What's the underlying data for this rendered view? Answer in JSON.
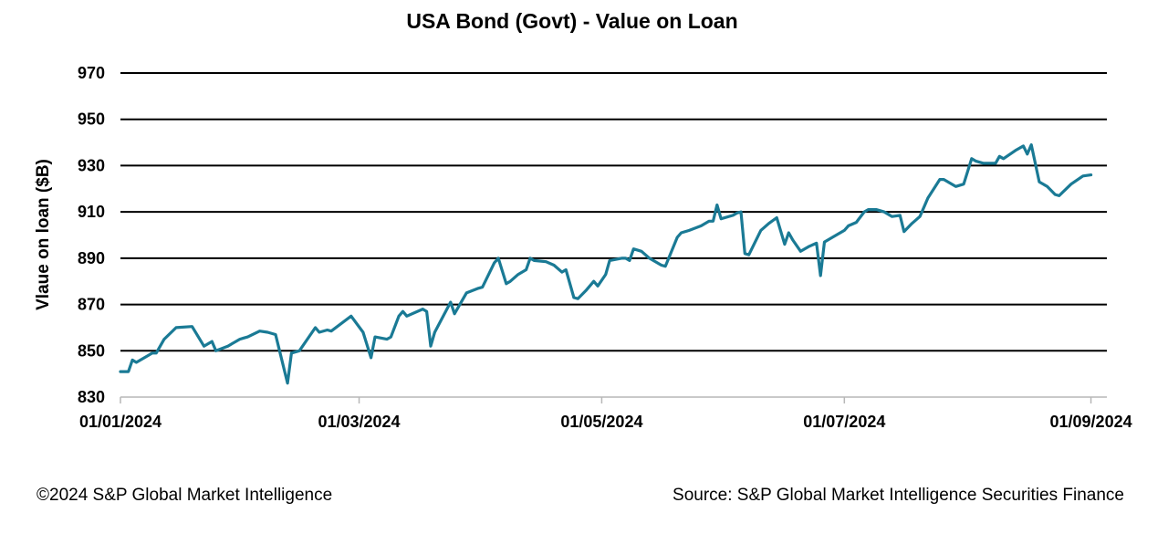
{
  "chart_data": {
    "type": "line",
    "title": "USA Bond (Govt) - Value on Loan",
    "ylabel": "Vlaue on loan ($B)",
    "xlabel": "",
    "ylim": [
      830,
      970
    ],
    "yticks": [
      830,
      850,
      870,
      890,
      910,
      930,
      950,
      970
    ],
    "xlim": [
      "2024-01-01",
      "2024-09-05"
    ],
    "xticks": [
      {
        "date": "2024-01-01",
        "label": "01/01/2024"
      },
      {
        "date": "2024-03-01",
        "label": "01/03/2024"
      },
      {
        "date": "2024-05-01",
        "label": "01/05/2024"
      },
      {
        "date": "2024-07-01",
        "label": "01/07/2024"
      },
      {
        "date": "2024-09-01",
        "label": "01/09/2024"
      }
    ],
    "grid": "horizontal",
    "legend": "none",
    "line_color": "#1a7a95",
    "series": [
      {
        "name": "",
        "points": [
          [
            "2024-01-01",
            841
          ],
          [
            "2024-01-03",
            841
          ],
          [
            "2024-01-04",
            846
          ],
          [
            "2024-01-05",
            845
          ],
          [
            "2024-01-08",
            848
          ],
          [
            "2024-01-09",
            849
          ],
          [
            "2024-01-10",
            849
          ],
          [
            "2024-01-12",
            855
          ],
          [
            "2024-01-15",
            860
          ],
          [
            "2024-01-19",
            860.5
          ],
          [
            "2024-01-22",
            852
          ],
          [
            "2024-01-24",
            854
          ],
          [
            "2024-01-25",
            850
          ],
          [
            "2024-01-28",
            852
          ],
          [
            "2024-01-31",
            855
          ],
          [
            "2024-02-01",
            855.5
          ],
          [
            "2024-02-02",
            856
          ],
          [
            "2024-02-05",
            858.5
          ],
          [
            "2024-02-07",
            858
          ],
          [
            "2024-02-09",
            857
          ],
          [
            "2024-02-12",
            836
          ],
          [
            "2024-02-13",
            849
          ],
          [
            "2024-02-15",
            850
          ],
          [
            "2024-02-19",
            860
          ],
          [
            "2024-02-20",
            858
          ],
          [
            "2024-02-22",
            859
          ],
          [
            "2024-02-23",
            858.5
          ],
          [
            "2024-02-28",
            865
          ],
          [
            "2024-03-02",
            858
          ],
          [
            "2024-03-04",
            847
          ],
          [
            "2024-03-05",
            856
          ],
          [
            "2024-03-08",
            855
          ],
          [
            "2024-03-09",
            856
          ],
          [
            "2024-03-11",
            865
          ],
          [
            "2024-03-12",
            867
          ],
          [
            "2024-03-13",
            865
          ],
          [
            "2024-03-17",
            868
          ],
          [
            "2024-03-18",
            867
          ],
          [
            "2024-03-19",
            852
          ],
          [
            "2024-03-20",
            858
          ],
          [
            "2024-03-24",
            871
          ],
          [
            "2024-03-25",
            866
          ],
          [
            "2024-03-26",
            869
          ],
          [
            "2024-03-28",
            875
          ],
          [
            "2024-03-31",
            877
          ],
          [
            "2024-04-01",
            877.5
          ],
          [
            "2024-04-04",
            888
          ],
          [
            "2024-04-05",
            890
          ],
          [
            "2024-04-07",
            879
          ],
          [
            "2024-04-08",
            880
          ],
          [
            "2024-04-10",
            883
          ],
          [
            "2024-04-12",
            885
          ],
          [
            "2024-04-13",
            890
          ],
          [
            "2024-04-14",
            889
          ],
          [
            "2024-04-17",
            888.5
          ],
          [
            "2024-04-19",
            887
          ],
          [
            "2024-04-21",
            884
          ],
          [
            "2024-04-22",
            885
          ],
          [
            "2024-04-24",
            873
          ],
          [
            "2024-04-25",
            872.5
          ],
          [
            "2024-04-27",
            876
          ],
          [
            "2024-04-29",
            880
          ],
          [
            "2024-04-30",
            878
          ],
          [
            "2024-05-02",
            883
          ],
          [
            "2024-05-03",
            889
          ],
          [
            "2024-05-06",
            890
          ],
          [
            "2024-05-07",
            890
          ],
          [
            "2024-05-08",
            889
          ],
          [
            "2024-05-09",
            894
          ],
          [
            "2024-05-11",
            893
          ],
          [
            "2024-05-13",
            890
          ],
          [
            "2024-05-16",
            887
          ],
          [
            "2024-05-17",
            886.5
          ],
          [
            "2024-05-20",
            899
          ],
          [
            "2024-05-21",
            901
          ],
          [
            "2024-05-23",
            902
          ],
          [
            "2024-05-26",
            904
          ],
          [
            "2024-05-28",
            906
          ],
          [
            "2024-05-29",
            906
          ],
          [
            "2024-05-30",
            913
          ],
          [
            "2024-05-31",
            907
          ],
          [
            "2024-06-03",
            908.5
          ],
          [
            "2024-06-04",
            909.5
          ],
          [
            "2024-06-05",
            910
          ],
          [
            "2024-06-06",
            892
          ],
          [
            "2024-06-07",
            891.5
          ],
          [
            "2024-06-10",
            902
          ],
          [
            "2024-06-12",
            905
          ],
          [
            "2024-06-14",
            907.5
          ],
          [
            "2024-06-16",
            896
          ],
          [
            "2024-06-17",
            901
          ],
          [
            "2024-06-18",
            898
          ],
          [
            "2024-06-20",
            893
          ],
          [
            "2024-06-22",
            895
          ],
          [
            "2024-06-24",
            896.5
          ],
          [
            "2024-06-25",
            882.5
          ],
          [
            "2024-06-26",
            897
          ],
          [
            "2024-06-28",
            899
          ],
          [
            "2024-07-01",
            902
          ],
          [
            "2024-07-02",
            904
          ],
          [
            "2024-07-04",
            905.5
          ],
          [
            "2024-07-06",
            910
          ],
          [
            "2024-07-07",
            911
          ],
          [
            "2024-07-09",
            911
          ],
          [
            "2024-07-11",
            910
          ],
          [
            "2024-07-13",
            908
          ],
          [
            "2024-07-15",
            908.5
          ],
          [
            "2024-07-16",
            901.5
          ],
          [
            "2024-07-18",
            905
          ],
          [
            "2024-07-20",
            908
          ],
          [
            "2024-07-22",
            916
          ],
          [
            "2024-07-25",
            924
          ],
          [
            "2024-07-26",
            924
          ],
          [
            "2024-07-29",
            921
          ],
          [
            "2024-07-31",
            922
          ],
          [
            "2024-08-02",
            933
          ],
          [
            "2024-08-03",
            932
          ],
          [
            "2024-08-05",
            931
          ],
          [
            "2024-08-08",
            931
          ],
          [
            "2024-08-09",
            934
          ],
          [
            "2024-08-10",
            933
          ],
          [
            "2024-08-13",
            936.5
          ],
          [
            "2024-08-15",
            938.5
          ],
          [
            "2024-08-16",
            935
          ],
          [
            "2024-08-17",
            939
          ],
          [
            "2024-08-19",
            923
          ],
          [
            "2024-08-21",
            921
          ],
          [
            "2024-08-23",
            917.5
          ],
          [
            "2024-08-24",
            917
          ],
          [
            "2024-08-27",
            922
          ],
          [
            "2024-08-30",
            925.5
          ],
          [
            "2024-09-01",
            926
          ]
        ]
      }
    ]
  },
  "footer": {
    "copyright": "©2024 S&P Global Market Intelligence",
    "source": "Source: S&P Global Market Intelligence Securities Finance"
  }
}
